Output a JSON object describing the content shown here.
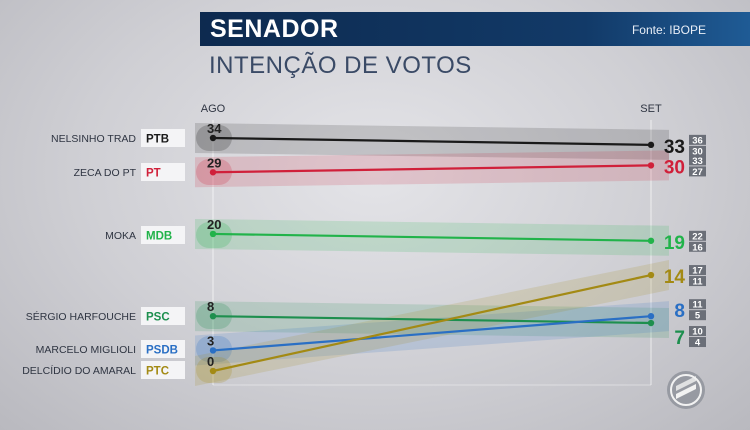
{
  "header": {
    "title": "SENADOR",
    "source": "Fonte: IBOPE"
  },
  "subtitle": "INTENÇÃO DE VOTOS",
  "chart_data": {
    "type": "line",
    "x": [
      "AGO",
      "SET"
    ],
    "ylim": [
      0,
      36
    ],
    "grid": false,
    "legend": "left",
    "series": [
      {
        "name": "NELSINHO TRAD",
        "party": "PTB",
        "color": "#1a1a1a",
        "values": [
          34,
          33
        ],
        "margin": [
          "36",
          "30"
        ]
      },
      {
        "name": "ZECA DO PT",
        "party": "PT",
        "color": "#d0203a",
        "values": [
          29,
          30
        ],
        "margin": [
          "33",
          "27"
        ]
      },
      {
        "name": "MOKA",
        "party": "MDB",
        "color": "#21b34a",
        "values": [
          20,
          19
        ],
        "margin": [
          "22",
          "16"
        ]
      },
      {
        "name": "SÉRGIO HARFOUCHE",
        "party": "PSC",
        "color": "#1d8f4e",
        "values": [
          8,
          7
        ],
        "margin": [
          "10",
          "4"
        ]
      },
      {
        "name": "MARCELO MIGLIOLI",
        "party": "PSDB",
        "color": "#2a6fc4",
        "values": [
          3,
          8
        ],
        "margin": [
          "11",
          "5"
        ]
      },
      {
        "name": "DELCÍDIO DO AMARAL",
        "party": "PTC",
        "color": "#a38a14",
        "values": [
          0,
          14
        ],
        "margin": [
          "17",
          "11"
        ]
      }
    ]
  }
}
